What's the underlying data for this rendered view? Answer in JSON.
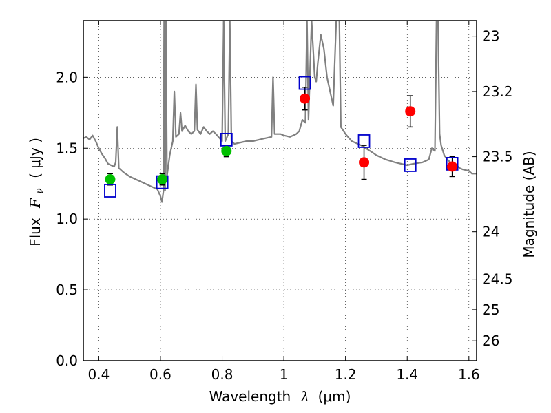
{
  "chart_data": {
    "type": "scatter",
    "title": "",
    "xlabel": {
      "text": "Wavelength",
      "symbol": "λ",
      "unit": "(μm)"
    },
    "ylabel": {
      "text": "Flux",
      "symbol": "F",
      "subscript": "ν",
      "unit": "( μJy )"
    },
    "y2label": "Magnitude (AB)",
    "xlim": [
      0.35,
      1.625
    ],
    "ylim": [
      0.0,
      2.4
    ],
    "grid": "dotted",
    "x_ticks": [
      {
        "value": 0.4,
        "label": "0.4"
      },
      {
        "value": 0.6,
        "label": "0.6"
      },
      {
        "value": 0.8,
        "label": "0.8"
      },
      {
        "value": 1.0,
        "label": "1"
      },
      {
        "value": 1.2,
        "label": "1.2"
      },
      {
        "value": 1.4,
        "label": "1.4"
      },
      {
        "value": 1.6,
        "label": "1.6"
      }
    ],
    "y_ticks": [
      {
        "value": 0.0,
        "label": "0.0"
      },
      {
        "value": 0.5,
        "label": "0.5"
      },
      {
        "value": 1.0,
        "label": "1.0"
      },
      {
        "value": 1.5,
        "label": "1.5"
      },
      {
        "value": 2.0,
        "label": "2.0"
      }
    ],
    "y2_ticks": [
      {
        "flux": 2.29,
        "label": "23"
      },
      {
        "flux": 1.9,
        "label": "23.2"
      },
      {
        "flux": 1.44,
        "label": "23.5"
      },
      {
        "flux": 0.91,
        "label": "24"
      },
      {
        "flux": 0.575,
        "label": "24.5"
      },
      {
        "flux": 0.36,
        "label": "25"
      },
      {
        "flux": 0.14,
        "label": "26"
      }
    ],
    "colors": {
      "spectrum": "#808080",
      "green_points": "#00c000",
      "red_points": "#ff0000",
      "model_boxes": "#0000cc",
      "errorbars": "#000000"
    },
    "spectrum": [
      [
        0.35,
        1.57
      ],
      [
        0.36,
        1.58
      ],
      [
        0.37,
        1.56
      ],
      [
        0.38,
        1.59
      ],
      [
        0.39,
        1.55
      ],
      [
        0.4,
        1.5
      ],
      [
        0.41,
        1.46
      ],
      [
        0.42,
        1.43
      ],
      [
        0.43,
        1.39
      ],
      [
        0.44,
        1.38
      ],
      [
        0.45,
        1.37
      ],
      [
        0.455,
        1.4
      ],
      [
        0.46,
        1.65
      ],
      [
        0.465,
        1.36
      ],
      [
        0.48,
        1.33
      ],
      [
        0.5,
        1.3
      ],
      [
        0.52,
        1.28
      ],
      [
        0.54,
        1.26
      ],
      [
        0.56,
        1.24
      ],
      [
        0.58,
        1.22
      ],
      [
        0.59,
        1.21
      ],
      [
        0.6,
        1.16
      ],
      [
        0.605,
        1.12
      ],
      [
        0.61,
        1.2
      ],
      [
        0.612,
        2.4
      ],
      [
        0.615,
        1.2
      ],
      [
        0.618,
        2.4
      ],
      [
        0.621,
        1.3
      ],
      [
        0.63,
        1.45
      ],
      [
        0.64,
        1.55
      ],
      [
        0.645,
        1.9
      ],
      [
        0.65,
        1.58
      ],
      [
        0.66,
        1.6
      ],
      [
        0.665,
        1.75
      ],
      [
        0.67,
        1.62
      ],
      [
        0.68,
        1.66
      ],
      [
        0.69,
        1.62
      ],
      [
        0.7,
        1.6
      ],
      [
        0.71,
        1.62
      ],
      [
        0.715,
        1.95
      ],
      [
        0.72,
        1.63
      ],
      [
        0.73,
        1.6
      ],
      [
        0.74,
        1.65
      ],
      [
        0.75,
        1.62
      ],
      [
        0.76,
        1.6
      ],
      [
        0.77,
        1.62
      ],
      [
        0.78,
        1.6
      ],
      [
        0.8,
        1.55
      ],
      [
        0.805,
        2.4
      ],
      [
        0.81,
        1.55
      ],
      [
        0.82,
        1.6
      ],
      [
        0.825,
        2.4
      ],
      [
        0.83,
        1.55
      ],
      [
        0.84,
        1.53
      ],
      [
        0.86,
        1.54
      ],
      [
        0.88,
        1.55
      ],
      [
        0.9,
        1.55
      ],
      [
        0.92,
        1.56
      ],
      [
        0.94,
        1.57
      ],
      [
        0.96,
        1.58
      ],
      [
        0.965,
        2.0
      ],
      [
        0.97,
        1.6
      ],
      [
        0.99,
        1.6
      ],
      [
        1.0,
        1.59
      ],
      [
        1.02,
        1.58
      ],
      [
        1.04,
        1.6
      ],
      [
        1.05,
        1.62
      ],
      [
        1.06,
        1.7
      ],
      [
        1.07,
        1.68
      ],
      [
        1.075,
        2.4
      ],
      [
        1.08,
        1.7
      ],
      [
        1.09,
        2.4
      ],
      [
        1.1,
        2.0
      ],
      [
        1.105,
        1.97
      ],
      [
        1.11,
        2.1
      ],
      [
        1.12,
        2.3
      ],
      [
        1.13,
        2.2
      ],
      [
        1.14,
        2.0
      ],
      [
        1.15,
        1.9
      ],
      [
        1.16,
        1.8
      ],
      [
        1.17,
        2.4
      ],
      [
        1.18,
        2.4
      ],
      [
        1.185,
        1.65
      ],
      [
        1.2,
        1.6
      ],
      [
        1.22,
        1.55
      ],
      [
        1.25,
        1.52
      ],
      [
        1.28,
        1.48
      ],
      [
        1.3,
        1.45
      ],
      [
        1.33,
        1.42
      ],
      [
        1.36,
        1.4
      ],
      [
        1.4,
        1.38
      ],
      [
        1.42,
        1.39
      ],
      [
        1.45,
        1.4
      ],
      [
        1.47,
        1.42
      ],
      [
        1.48,
        1.5
      ],
      [
        1.49,
        1.48
      ],
      [
        1.495,
        2.4
      ],
      [
        1.5,
        2.4
      ],
      [
        1.505,
        1.6
      ],
      [
        1.51,
        1.52
      ],
      [
        1.52,
        1.45
      ],
      [
        1.53,
        1.42
      ],
      [
        1.54,
        1.4
      ],
      [
        1.55,
        1.38
      ],
      [
        1.56,
        1.38
      ],
      [
        1.57,
        1.36
      ],
      [
        1.58,
        1.35
      ],
      [
        1.6,
        1.34
      ],
      [
        1.61,
        1.32
      ],
      [
        1.625,
        1.32
      ]
    ],
    "model_points": [
      {
        "x": 0.437,
        "y": 1.2
      },
      {
        "x": 0.606,
        "y": 1.26
      },
      {
        "x": 0.814,
        "y": 1.56
      },
      {
        "x": 1.068,
        "y": 1.96
      },
      {
        "x": 1.26,
        "y": 1.55
      },
      {
        "x": 1.41,
        "y": 1.38
      },
      {
        "x": 1.546,
        "y": 1.39
      }
    ],
    "observed_points": [
      {
        "x": 0.437,
        "y": 1.28,
        "err": 0.04,
        "color": "green"
      },
      {
        "x": 0.606,
        "y": 1.28,
        "err": 0.04,
        "color": "green"
      },
      {
        "x": 0.814,
        "y": 1.48,
        "err": 0.04,
        "color": "green"
      },
      {
        "x": 1.068,
        "y": 1.85,
        "err": 0.08,
        "color": "red"
      },
      {
        "x": 1.26,
        "y": 1.4,
        "err": 0.12,
        "color": "red"
      },
      {
        "x": 1.41,
        "y": 1.76,
        "err": 0.11,
        "color": "red"
      },
      {
        "x": 1.546,
        "y": 1.37,
        "err": 0.07,
        "color": "red"
      }
    ]
  }
}
